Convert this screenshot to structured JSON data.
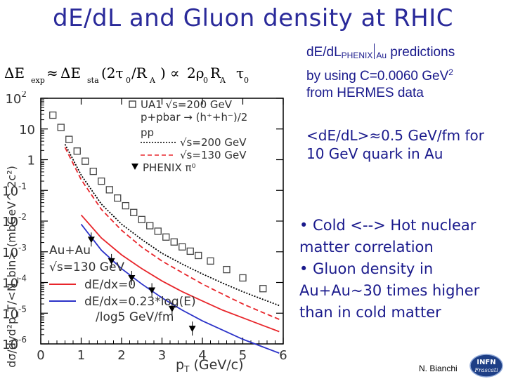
{
  "slide": {
    "title": "dE/dL and Gluon density  at RHIC",
    "author": "N. Bianchi",
    "logo_text": [
      "INFN",
      "Frascati"
    ],
    "colors": {
      "title": "#2a2a9a",
      "text": "#1a1a8c",
      "red_curve": "#e8262b",
      "blue_curve": "#2b32c8"
    }
  },
  "formula": {
    "lhs": "ΔE",
    "lhs_sub": "exp",
    "approx": "≈",
    "rhs1": "ΔE",
    "rhs1_sub": "sta",
    "paren": "(2τ",
    "paren_sub": "0",
    "paren_rest": "/R",
    "paren_sub2": "A",
    "close": ")",
    "prop": "∝",
    "rhs2": "2ρ",
    "rhs2_sub": "0",
    "r": "R",
    "r_sub": "A",
    "tau": "τ",
    "tau_sub": "0"
  },
  "text": {
    "pred_a": "dE/dL",
    "pred_a_sub": "PHENIX",
    "pred_b": "Au",
    "pred_c": " predictions",
    "pred_line2": "by using C=0.0060 GeV",
    "pred_line2_sup": "2",
    "pred_line3": "from HERMES data",
    "mean_line1": "<dE/dL>≈0.5 GeV/fm for",
    "mean_line2": "10 GeV quark in Au",
    "bullet1": "• Cold <--> Hot nuclear matter correlation",
    "bullet2": "• Gluon density in Au+Au~30 times higher than in cold matter"
  },
  "chart_data": {
    "type": "scatter",
    "xlabel": "p",
    "xlabel_sub": "T",
    "xlabel_unit": " (GeV/c)",
    "ylabel": "dσ/dyd²p_T/<N_bin> (mbGeV^-2c²)",
    "xlim": [
      0,
      6
    ],
    "ylim_log10": [
      -6,
      2
    ],
    "xticks": [
      "0",
      "1",
      "2",
      "3",
      "4",
      "5",
      "6"
    ],
    "yticks": [
      {
        "base": "10",
        "exp": "2"
      },
      {
        "base": "10",
        "exp": ""
      },
      {
        "base": "1",
        "exp": ""
      },
      {
        "base": "10",
        "exp": "-1"
      },
      {
        "base": "10",
        "exp": "-2"
      },
      {
        "base": "10",
        "exp": "-3"
      },
      {
        "base": "10",
        "exp": "-4"
      },
      {
        "base": "10",
        "exp": "-5"
      },
      {
        "base": "10",
        "exp": "-6"
      }
    ],
    "legend_top": {
      "ua1": "UA1  √s=200 GeV",
      "ua1_line2": "p+pbar → (h⁺+h⁻)/2",
      "pp": "pp",
      "pp200": "√s=200 GeV",
      "pp130": "√s=130 GeV",
      "phenix": "PHENIX π⁰"
    },
    "legend_bottom": {
      "system": "Au+Au",
      "energy": "√s=130 GeV",
      "red": "dE/dx=0",
      "blue": "dE/dx=0.23*log(E)",
      "blue2": "/log5 GeV/fm"
    },
    "series": [
      {
        "name": "UA1  √s=200 GeV",
        "marker": "square",
        "x": [
          0.3,
          0.5,
          0.7,
          0.9,
          1.1,
          1.3,
          1.5,
          1.7,
          1.9,
          2.1,
          2.3,
          2.5,
          2.7,
          2.9,
          3.1,
          3.3,
          3.5,
          3.7,
          3.9,
          4.2,
          4.6,
          5.0,
          5.5
        ],
        "log10y": [
          1.45,
          1.05,
          0.66,
          0.28,
          -0.05,
          -0.38,
          -0.7,
          -0.98,
          -1.25,
          -1.5,
          -1.72,
          -1.95,
          -2.15,
          -2.33,
          -2.52,
          -2.68,
          -2.84,
          -2.98,
          -3.12,
          -3.3,
          -3.58,
          -3.85,
          -4.2
        ]
      },
      {
        "name": "PHENIX π⁰",
        "marker": "triangle",
        "x": [
          1.25,
          1.75,
          2.25,
          2.75,
          3.25,
          3.75
        ],
        "log10y": [
          -2.6,
          -3.3,
          -3.85,
          -4.25,
          -4.85,
          -5.5
        ]
      },
      {
        "name": "pp √s=200 GeV",
        "style": "dotted-black",
        "x": [
          0.6,
          1,
          1.5,
          2,
          2.5,
          3,
          3.5,
          4,
          4.5,
          5,
          5.5,
          5.9
        ],
        "log10y": [
          0.5,
          -0.5,
          -1.45,
          -2.1,
          -2.6,
          -3.05,
          -3.4,
          -3.72,
          -4.02,
          -4.3,
          -4.55,
          -4.75
        ]
      },
      {
        "name": "pp √s=130 GeV",
        "style": "dashed-red",
        "x": [
          0.6,
          1,
          1.5,
          2,
          2.5,
          3,
          3.5,
          4,
          4.5,
          5,
          5.5,
          5.9
        ],
        "log10y": [
          0.4,
          -0.65,
          -1.62,
          -2.3,
          -2.85,
          -3.3,
          -3.68,
          -4.05,
          -4.38,
          -4.7,
          -4.98,
          -5.2
        ]
      },
      {
        "name": "dE/dx=0",
        "style": "solid-red",
        "x": [
          1,
          1.5,
          2,
          2.5,
          3,
          3.5,
          4,
          4.5,
          5,
          5.5,
          5.9
        ],
        "log10y": [
          -1.8,
          -2.55,
          -3.1,
          -3.55,
          -3.95,
          -4.3,
          -4.6,
          -4.9,
          -5.15,
          -5.4,
          -5.6
        ]
      },
      {
        "name": "dE/dx=0.23*log(E)/log5 GeV/fm",
        "style": "solid-blue",
        "x": [
          1,
          1.5,
          2,
          2.5,
          3,
          3.5,
          4,
          4.5,
          5,
          5.5,
          5.9
        ],
        "log10y": [
          -2.1,
          -2.95,
          -3.55,
          -4.05,
          -4.5,
          -4.9,
          -5.25,
          -5.55,
          -5.85,
          -6.1,
          -6.3
        ]
      }
    ]
  }
}
